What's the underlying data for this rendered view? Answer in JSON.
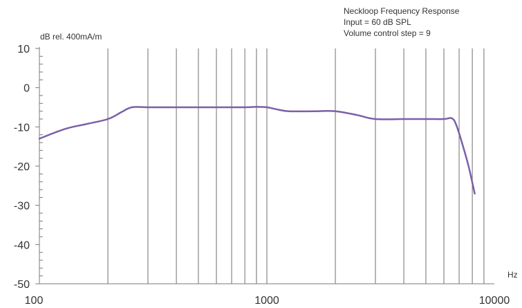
{
  "chart_data": {
    "type": "line",
    "title_lines": [
      "Neckloop Frequency Response",
      "Input = 60 dB SPL",
      "Volume control step = 9"
    ],
    "ylabel": "dB rel. 400mA/m",
    "xlabel": "Hz",
    "x_scale": "log",
    "xlim": [
      100,
      10000
    ],
    "ylim": [
      -50,
      10
    ],
    "x_ticks": [
      100,
      1000,
      10000
    ],
    "x_tick_labels": [
      "100",
      "1000",
      "10000"
    ],
    "y_ticks": [
      10,
      0,
      -10,
      -20,
      -30,
      -40,
      -50
    ],
    "y_tick_labels": [
      "10",
      "0",
      "-10",
      "-20",
      "-30",
      "-40",
      "-50"
    ],
    "grid": "vertical lines at log decade subdivisions",
    "series": [
      {
        "color": "#7b5fa8",
        "x": [
          100,
          130,
          160,
          200,
          230,
          255,
          300,
          400,
          600,
          800,
          900,
          1000,
          1100,
          1250,
          1600,
          2000,
          2500,
          3000,
          4000,
          5000,
          6000,
          6500,
          6800,
          7200,
          7700,
          8200
        ],
        "y": [
          -13,
          -10.5,
          -9.3,
          -8,
          -6.2,
          -5,
          -5,
          -5,
          -5,
          -5,
          -4.9,
          -5,
          -5.5,
          -6,
          -6,
          -6,
          -7,
          -8,
          -8,
          -8,
          -8,
          -7.8,
          -9.5,
          -14,
          -20,
          -27
        ]
      }
    ]
  }
}
